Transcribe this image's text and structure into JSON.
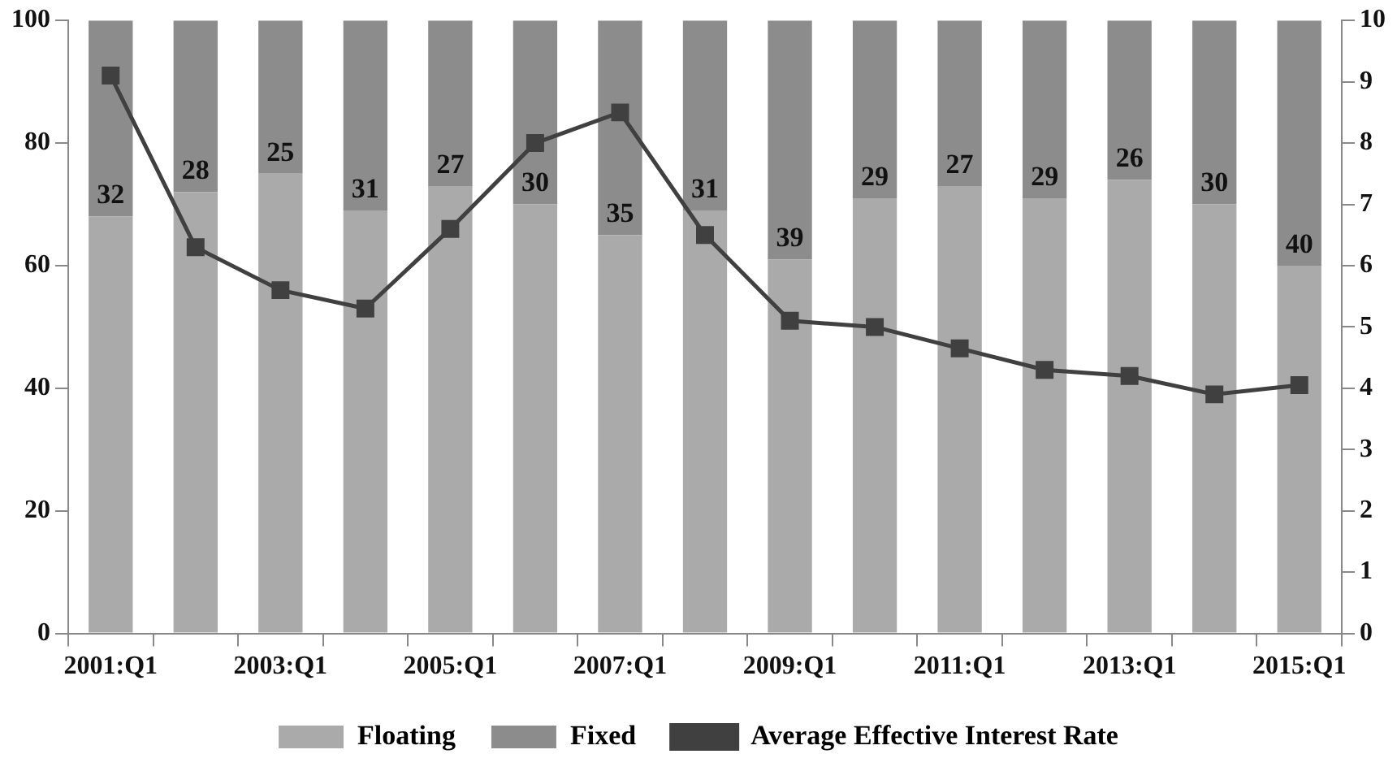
{
  "chart_data": {
    "type": "bar",
    "stacked": true,
    "categories": [
      "2001:Q1",
      null,
      "2003:Q1",
      null,
      "2005:Q1",
      null,
      "2007:Q1",
      null,
      "2009:Q1",
      null,
      "2011:Q1",
      null,
      "2013:Q1",
      null,
      "2015:Q1"
    ],
    "series": [
      {
        "name": "Floating",
        "color": "#aaaaaa",
        "values": [
          68,
          72,
          75,
          69,
          73,
          70,
          65,
          69,
          61,
          71,
          73,
          71,
          74,
          70,
          60
        ]
      },
      {
        "name": "Fixed",
        "color": "#8c8c8c",
        "values": [
          32,
          28,
          25,
          31,
          27,
          30,
          35,
          31,
          39,
          29,
          27,
          29,
          26,
          30,
          40
        ],
        "value_labels": [
          "32",
          "28",
          "25",
          "31",
          "27",
          "30",
          "35",
          "31",
          "39",
          "29",
          "27",
          "29",
          "26",
          "30",
          "40"
        ]
      },
      {
        "name": "Average Effective Interest Rate",
        "type": "line",
        "axis": "y2",
        "color": "#404040",
        "marker": "square",
        "values": [
          9.1,
          6.3,
          5.6,
          5.3,
          6.6,
          8.0,
          8.5,
          6.5,
          5.1,
          5.0,
          4.65,
          4.3,
          4.2,
          3.9,
          4.05
        ]
      }
    ],
    "ylim": [
      0,
      100
    ],
    "yticks": [
      0,
      20,
      40,
      60,
      80,
      100
    ],
    "y2lim": [
      0,
      10
    ],
    "y2ticks": [
      0,
      1,
      2,
      3,
      4,
      5,
      6,
      7,
      8,
      9,
      10
    ],
    "grid": false,
    "legend": "bottom"
  }
}
